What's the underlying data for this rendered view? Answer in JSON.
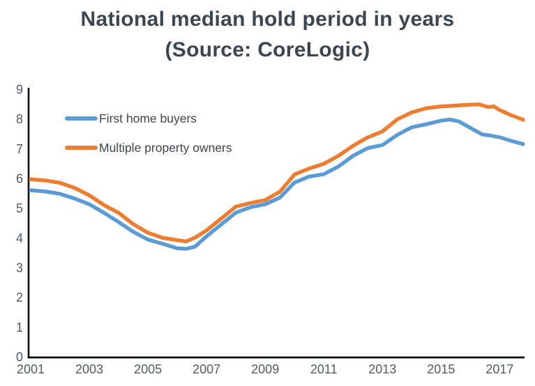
{
  "title": {
    "line1": "National median hold period in years",
    "line2": "(Source: CoreLogic)"
  },
  "colors": {
    "title_text": "#3a4650",
    "axis_line": "#0d0d0d",
    "tick_label": "#525c64",
    "legend_text": "#3f4549",
    "series_blue": "#5B9BD5",
    "series_orange": "#ED7D31",
    "background": "#ffffff"
  },
  "chart_data": {
    "type": "line",
    "title": "National median hold period in years (Source: CoreLogic)",
    "xlabel": "",
    "ylabel": "",
    "xlim": [
      2001,
      2017.8
    ],
    "ylim": [
      0,
      9
    ],
    "x_ticks": [
      2001,
      2003,
      2005,
      2007,
      2009,
      2011,
      2013,
      2015,
      2017
    ],
    "y_ticks": [
      0,
      1,
      2,
      3,
      4,
      5,
      6,
      7,
      8,
      9
    ],
    "grid": false,
    "legend_position": "inside-top-left",
    "series": [
      {
        "name": "First home buyers",
        "color": "#5B9BD5",
        "points": [
          [
            2001.0,
            5.6
          ],
          [
            2001.5,
            5.56
          ],
          [
            2002.0,
            5.48
          ],
          [
            2002.5,
            5.32
          ],
          [
            2003.0,
            5.13
          ],
          [
            2003.5,
            4.84
          ],
          [
            2004.0,
            4.53
          ],
          [
            2004.5,
            4.2
          ],
          [
            2005.0,
            3.94
          ],
          [
            2005.5,
            3.8
          ],
          [
            2006.0,
            3.65
          ],
          [
            2006.3,
            3.63
          ],
          [
            2006.6,
            3.7
          ],
          [
            2007.0,
            4.05
          ],
          [
            2007.5,
            4.45
          ],
          [
            2008.0,
            4.85
          ],
          [
            2008.5,
            5.03
          ],
          [
            2009.0,
            5.13
          ],
          [
            2009.5,
            5.35
          ],
          [
            2010.0,
            5.86
          ],
          [
            2010.5,
            6.06
          ],
          [
            2011.0,
            6.14
          ],
          [
            2011.5,
            6.4
          ],
          [
            2012.0,
            6.76
          ],
          [
            2012.5,
            7.02
          ],
          [
            2013.0,
            7.12
          ],
          [
            2013.5,
            7.46
          ],
          [
            2014.0,
            7.72
          ],
          [
            2014.5,
            7.82
          ],
          [
            2015.0,
            7.94
          ],
          [
            2015.3,
            7.98
          ],
          [
            2015.6,
            7.92
          ],
          [
            2016.0,
            7.7
          ],
          [
            2016.4,
            7.48
          ],
          [
            2016.7,
            7.44
          ],
          [
            2017.0,
            7.38
          ],
          [
            2017.4,
            7.26
          ],
          [
            2017.8,
            7.15
          ]
        ]
      },
      {
        "name": "Multiple property owners",
        "color": "#ED7D31",
        "points": [
          [
            2001.0,
            5.97
          ],
          [
            2001.5,
            5.93
          ],
          [
            2002.0,
            5.85
          ],
          [
            2002.5,
            5.68
          ],
          [
            2003.0,
            5.43
          ],
          [
            2003.5,
            5.1
          ],
          [
            2004.0,
            4.84
          ],
          [
            2004.5,
            4.46
          ],
          [
            2005.0,
            4.17
          ],
          [
            2005.5,
            4.0
          ],
          [
            2006.0,
            3.92
          ],
          [
            2006.3,
            3.88
          ],
          [
            2006.6,
            4.0
          ],
          [
            2007.0,
            4.25
          ],
          [
            2007.5,
            4.65
          ],
          [
            2008.0,
            5.05
          ],
          [
            2008.5,
            5.17
          ],
          [
            2009.0,
            5.27
          ],
          [
            2009.5,
            5.55
          ],
          [
            2010.0,
            6.13
          ],
          [
            2010.5,
            6.33
          ],
          [
            2011.0,
            6.49
          ],
          [
            2011.5,
            6.76
          ],
          [
            2012.0,
            7.1
          ],
          [
            2012.5,
            7.38
          ],
          [
            2013.0,
            7.58
          ],
          [
            2013.5,
            7.98
          ],
          [
            2014.0,
            8.22
          ],
          [
            2014.5,
            8.36
          ],
          [
            2015.0,
            8.42
          ],
          [
            2015.5,
            8.45
          ],
          [
            2016.0,
            8.48
          ],
          [
            2016.3,
            8.49
          ],
          [
            2016.6,
            8.4
          ],
          [
            2016.8,
            8.42
          ],
          [
            2017.0,
            8.3
          ],
          [
            2017.4,
            8.12
          ],
          [
            2017.8,
            7.97
          ]
        ]
      }
    ]
  }
}
